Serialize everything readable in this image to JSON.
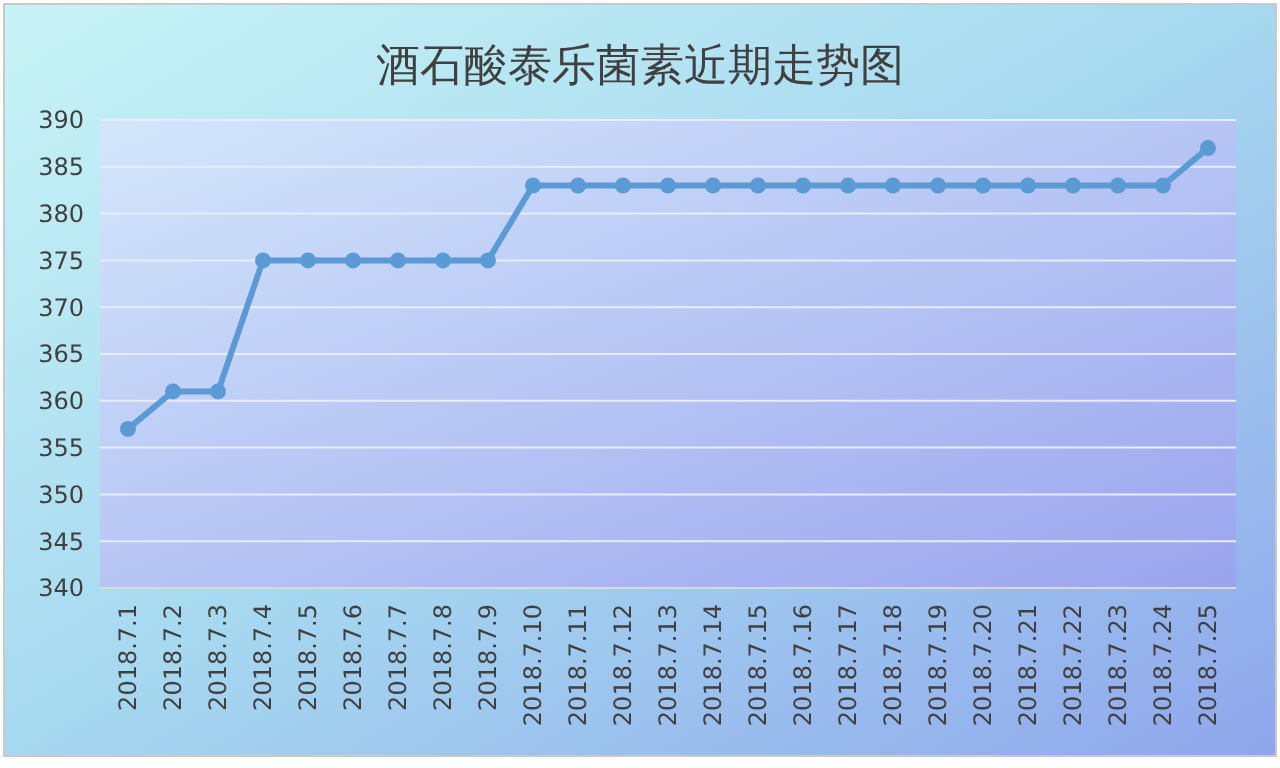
{
  "chart_data": {
    "type": "line",
    "title": "酒石酸泰乐菌素近期走势图",
    "categories": [
      "2018.7.1",
      "2018.7.2",
      "2018.7.3",
      "2018.7.4",
      "2018.7.5",
      "2018.7.6",
      "2018.7.7",
      "2018.7.8",
      "2018.7.9",
      "2018.7.10",
      "2018.7.11",
      "2018.7.12",
      "2018.7.13",
      "2018.7.14",
      "2018.7.15",
      "2018.7.16",
      "2018.7.17",
      "2018.7.18",
      "2018.7.19",
      "2018.7.20",
      "2018.7.21",
      "2018.7.22",
      "2018.7.23",
      "2018.7.24",
      "2018.7.25"
    ],
    "series": [
      {
        "color": "#5b9bd5",
        "values": [
          357,
          361,
          361,
          375,
          375,
          375,
          375,
          375,
          375,
          383,
          383,
          383,
          383,
          383,
          383,
          383,
          383,
          383,
          383,
          383,
          383,
          383,
          383,
          383,
          387
        ]
      }
    ],
    "ylim": [
      340,
      390
    ],
    "yticks": [
      340,
      345,
      350,
      355,
      360,
      365,
      370,
      375,
      380,
      385,
      390
    ],
    "grid": "y",
    "marker": "circle",
    "line_style": "solid"
  }
}
